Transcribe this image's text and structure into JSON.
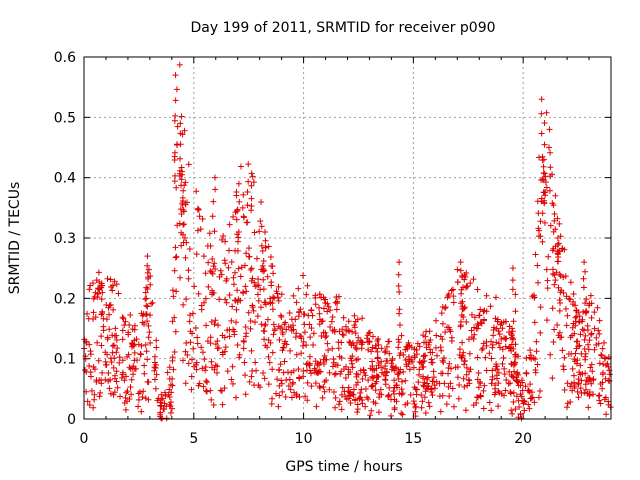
{
  "chart_data": {
    "type": "scatter",
    "title": "Day 199 of 2011, SRMTID for receiver p090",
    "xlabel": "GPS time / hours",
    "ylabel": "SRMTID / TECUs",
    "xlim": [
      0,
      24
    ],
    "ylim": [
      0,
      0.6
    ],
    "xticks": [
      0,
      5,
      10,
      15,
      20
    ],
    "xtick_labels": [
      "0",
      "5",
      "10",
      "15",
      "20"
    ],
    "yticks": [
      0,
      0.1,
      0.2,
      0.3,
      0.4,
      0.5,
      0.6
    ],
    "ytick_labels": [
      "0",
      "0.1",
      "0.2",
      "0.3",
      "0.4",
      "0.5",
      "0.6"
    ],
    "grid": true,
    "marker": "plus",
    "color": "#e00000",
    "series": [
      {
        "name": "SRMTID",
        "envelope": [
          [
            0.0,
            0.11
          ],
          [
            0.5,
            0.14
          ],
          [
            1.0,
            0.12
          ],
          [
            1.5,
            0.13
          ],
          [
            2.0,
            0.1
          ],
          [
            2.5,
            0.08
          ],
          [
            2.8,
            0.12
          ],
          [
            3.0,
            0.15
          ],
          [
            3.5,
            0.02
          ],
          [
            4.0,
            0.05
          ],
          [
            4.2,
            0.35
          ],
          [
            4.5,
            0.3
          ],
          [
            5.0,
            0.22
          ],
          [
            5.5,
            0.18
          ],
          [
            6.0,
            0.16
          ],
          [
            6.5,
            0.18
          ],
          [
            7.0,
            0.22
          ],
          [
            7.5,
            0.24
          ],
          [
            8.0,
            0.2
          ],
          [
            8.5,
            0.15
          ],
          [
            9.0,
            0.12
          ],
          [
            9.5,
            0.11
          ],
          [
            10.0,
            0.13
          ],
          [
            10.5,
            0.12
          ],
          [
            11.0,
            0.12
          ],
          [
            11.5,
            0.11
          ],
          [
            12.0,
            0.1
          ],
          [
            12.5,
            0.09
          ],
          [
            13.0,
            0.08
          ],
          [
            13.5,
            0.07
          ],
          [
            14.0,
            0.07
          ],
          [
            14.5,
            0.08
          ],
          [
            15.0,
            0.07
          ],
          [
            15.5,
            0.08
          ],
          [
            16.0,
            0.09
          ],
          [
            16.5,
            0.11
          ],
          [
            17.0,
            0.14
          ],
          [
            17.5,
            0.13
          ],
          [
            18.0,
            0.12
          ],
          [
            18.5,
            0.11
          ],
          [
            19.0,
            0.11
          ],
          [
            19.5,
            0.08
          ],
          [
            20.0,
            0.03
          ],
          [
            20.5,
            0.12
          ],
          [
            20.8,
            0.28
          ],
          [
            21.0,
            0.32
          ],
          [
            21.5,
            0.22
          ],
          [
            22.0,
            0.14
          ],
          [
            22.5,
            0.1
          ],
          [
            23.0,
            0.12
          ],
          [
            23.5,
            0.09
          ],
          [
            24.0,
            0.06
          ]
        ],
        "peaks": [
          {
            "x": 4.2,
            "y": 0.57
          },
          {
            "x": 4.4,
            "y": 0.49
          },
          {
            "x": 4.5,
            "y": 0.41
          },
          {
            "x": 5.9,
            "y": 0.4
          },
          {
            "x": 7.0,
            "y": 0.39
          },
          {
            "x": 8.2,
            "y": 0.31
          },
          {
            "x": 2.9,
            "y": 0.27
          },
          {
            "x": 14.4,
            "y": 0.26
          },
          {
            "x": 17.2,
            "y": 0.26
          },
          {
            "x": 19.6,
            "y": 0.25
          },
          {
            "x": 20.9,
            "y": 0.53
          },
          {
            "x": 21.0,
            "y": 0.43
          },
          {
            "x": 21.4,
            "y": 0.37
          },
          {
            "x": 21.6,
            "y": 0.3
          },
          {
            "x": 22.8,
            "y": 0.26
          }
        ]
      }
    ]
  }
}
